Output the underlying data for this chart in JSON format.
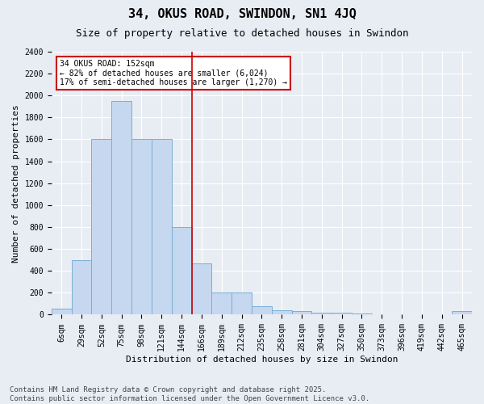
{
  "title": "34, OKUS ROAD, SWINDON, SN1 4JQ",
  "subtitle": "Size of property relative to detached houses in Swindon",
  "xlabel": "Distribution of detached houses by size in Swindon",
  "ylabel": "Number of detached properties",
  "bin_labels": [
    "6sqm",
    "29sqm",
    "52sqm",
    "75sqm",
    "98sqm",
    "121sqm",
    "144sqm",
    "166sqm",
    "189sqm",
    "212sqm",
    "235sqm",
    "258sqm",
    "281sqm",
    "304sqm",
    "327sqm",
    "350sqm",
    "373sqm",
    "396sqm",
    "419sqm",
    "442sqm",
    "465sqm"
  ],
  "bar_heights": [
    55,
    500,
    1600,
    1950,
    1600,
    1600,
    800,
    470,
    200,
    200,
    80,
    40,
    30,
    20,
    15,
    10,
    5,
    3,
    2,
    2,
    30
  ],
  "bar_color": "#c5d8ef",
  "bar_edgecolor": "#7aafd4",
  "vline_pos": 6.5,
  "vline_color": "#cc0000",
  "annotation_text": "34 OKUS ROAD: 152sqm\n← 82% of detached houses are smaller (6,024)\n17% of semi-detached houses are larger (1,270) →",
  "annotation_box_facecolor": "#ffffff",
  "annotation_box_edgecolor": "#cc0000",
  "ylim": [
    0,
    2400
  ],
  "yticks": [
    0,
    200,
    400,
    600,
    800,
    1000,
    1200,
    1400,
    1600,
    1800,
    2000,
    2200,
    2400
  ],
  "footer_text": "Contains HM Land Registry data © Crown copyright and database right 2025.\nContains public sector information licensed under the Open Government Licence v3.0.",
  "background_color": "#e8edf4",
  "grid_color": "#ffffff",
  "title_fontsize": 11,
  "subtitle_fontsize": 9,
  "ylabel_fontsize": 8,
  "xlabel_fontsize": 8,
  "tick_fontsize": 7,
  "annot_fontsize": 7,
  "footer_fontsize": 6.5
}
